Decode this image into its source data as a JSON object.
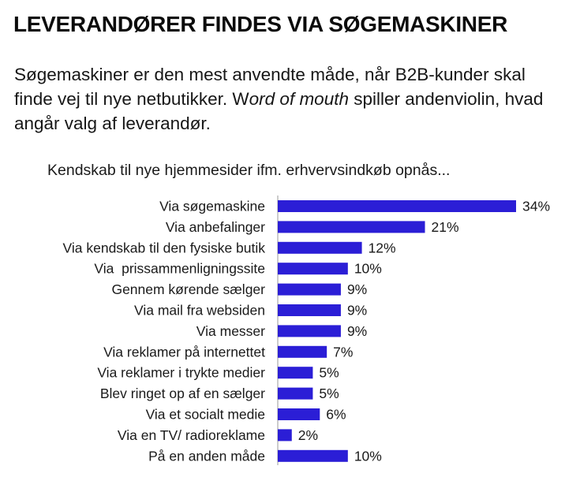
{
  "page": {
    "headline": "LEVERANDØRER FINDES VIA SØGEMASKINER",
    "intro_part1": "Søgemaskiner er den mest anvendte måde, når B2B-kunder skal finde vej til nye netbutikker. W",
    "intro_emphasis": "ord of mouth",
    "intro_part2": " spiller andenviolin, hvad angår valg af leverandør."
  },
  "chart_data": {
    "type": "bar",
    "orientation": "horizontal",
    "title": "Kendskab til nye hjemmesider ifm. erhvervsindkøb opnås...",
    "categories": [
      "Via søgemaskine",
      "Via anbefalinger",
      "Via kendskab til den fysiske butik",
      "Via  prissammenligningssite",
      "Gennem kørende sælger",
      "Via mail fra websiden",
      "Via messer",
      "Via reklamer på internettet",
      "Via reklamer i trykte medier",
      "Blev ringet op af en sælger",
      "Via et socialt medie",
      "Via en TV/ radioreklame",
      "På en anden måde"
    ],
    "values": [
      34,
      21,
      12,
      10,
      9,
      9,
      9,
      7,
      5,
      5,
      6,
      2,
      10
    ],
    "value_labels": [
      "34%",
      "21%",
      "12%",
      "10%",
      "9%",
      "9%",
      "9%",
      "7%",
      "5%",
      "5%",
      "6%",
      "2%",
      "10%"
    ],
    "unit": "%",
    "xlim": [
      0,
      34
    ],
    "bar_color": "#2b1ed6",
    "grid": false,
    "legend": "none"
  }
}
